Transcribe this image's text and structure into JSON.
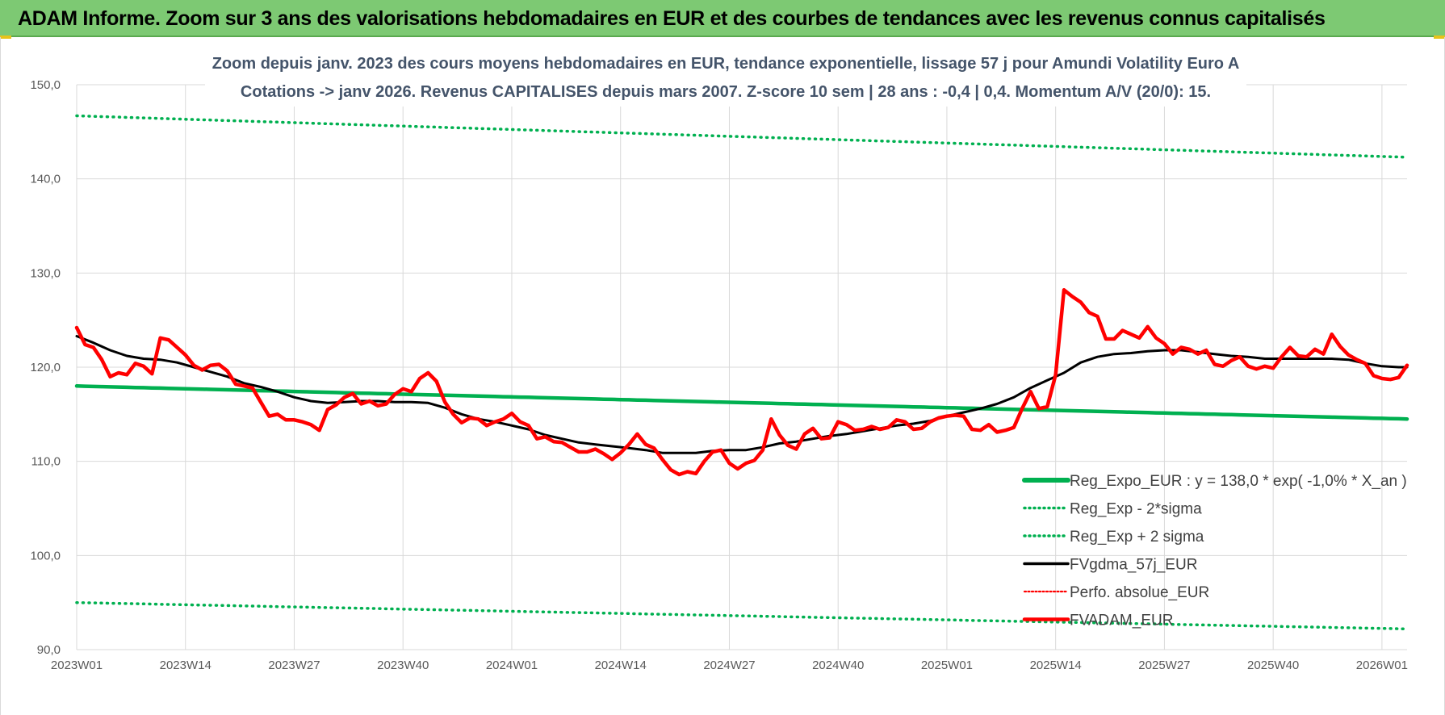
{
  "header": {
    "title": "ADAM Informe. Zoom sur 3 ans des valorisations hebdomadaires en EUR et des courbes de tendances avec les revenus connus capitalisés"
  },
  "colors": {
    "header_bg": "#7dc973",
    "trend": "#00b050",
    "black_line": "#000000",
    "red_line": "#ff0000",
    "grid": "#d9d9d9",
    "title_text": "#44546a"
  },
  "chart_data": {
    "type": "line",
    "title_lines": [
      "Zoom depuis janv. 2023 des cours moyens hebdomadaires en EUR, tendance exponentielle, lissage 57 j pour Amundi Volatility Euro A",
      "Cotations -> janv 2026. Revenus CAPITALISES  depuis mars 2007.  Z-score 10 sem | 28 ans : -0,4  | 0,4. Momentum A/V (20/0): 15."
    ],
    "ylim": [
      90,
      150
    ],
    "yticks": [
      90,
      100,
      110,
      120,
      130,
      140,
      150
    ],
    "ytick_labels": [
      "90,0",
      "100,0",
      "110,0",
      "120,0",
      "130,0",
      "140,0",
      "150,0"
    ],
    "x_count": 160,
    "xtick_index": [
      0,
      13,
      26,
      39,
      52,
      65,
      78,
      91,
      104,
      117,
      130,
      143,
      156
    ],
    "xtick_labels": [
      "2023W01",
      "2023W14",
      "2023W27",
      "2023W40",
      "2024W01",
      "2024W14",
      "2024W27",
      "2024W40",
      "2025W01",
      "2025W14",
      "2025W27",
      "2025W40",
      "2026W01"
    ],
    "legend": [
      "Reg_Expo_EUR : y = 138,0 * exp( -1,0% *  X_an )",
      "Reg_Exp - 2*sigma",
      "Reg_Exp + 2 sigma",
      "FVgdma_57j_EUR",
      "Perfo. absolue_EUR",
      "FVADAM_EUR"
    ],
    "series": [
      {
        "name": "Reg_Expo_EUR",
        "style": "solid-thick",
        "color": "#00b050",
        "points": [
          [
            0,
            118.0
          ],
          [
            159,
            114.5
          ]
        ]
      },
      {
        "name": "Reg_Exp + 2 sigma",
        "style": "dotted",
        "color": "#00b050",
        "points": [
          [
            0,
            146.7
          ],
          [
            159,
            142.3
          ]
        ]
      },
      {
        "name": "Reg_Exp - 2*sigma",
        "style": "dotted",
        "color": "#00b050",
        "points": [
          [
            0,
            95.0
          ],
          [
            159,
            92.2
          ]
        ]
      },
      {
        "name": "FVgdma_57j_EUR",
        "style": "solid",
        "color": "#000000",
        "points": [
          [
            0,
            123.3
          ],
          [
            2,
            122.6
          ],
          [
            4,
            121.8
          ],
          [
            6,
            121.2
          ],
          [
            8,
            120.9
          ],
          [
            10,
            120.8
          ],
          [
            12,
            120.5
          ],
          [
            14,
            120.0
          ],
          [
            16,
            119.5
          ],
          [
            18,
            119.0
          ],
          [
            20,
            118.3
          ],
          [
            22,
            117.9
          ],
          [
            24,
            117.4
          ],
          [
            26,
            116.8
          ],
          [
            28,
            116.4
          ],
          [
            30,
            116.2
          ],
          [
            32,
            116.3
          ],
          [
            34,
            116.4
          ],
          [
            36,
            116.4
          ],
          [
            38,
            116.3
          ],
          [
            40,
            116.3
          ],
          [
            42,
            116.2
          ],
          [
            44,
            115.7
          ],
          [
            46,
            115.0
          ],
          [
            48,
            114.5
          ],
          [
            50,
            114.2
          ],
          [
            52,
            113.8
          ],
          [
            54,
            113.4
          ],
          [
            56,
            112.8
          ],
          [
            58,
            112.4
          ],
          [
            60,
            112.0
          ],
          [
            62,
            111.8
          ],
          [
            64,
            111.6
          ],
          [
            66,
            111.4
          ],
          [
            68,
            111.2
          ],
          [
            70,
            110.9
          ],
          [
            72,
            110.9
          ],
          [
            74,
            110.9
          ],
          [
            76,
            111.1
          ],
          [
            78,
            111.2
          ],
          [
            80,
            111.2
          ],
          [
            82,
            111.5
          ],
          [
            84,
            111.9
          ],
          [
            86,
            112.1
          ],
          [
            88,
            112.4
          ],
          [
            90,
            112.7
          ],
          [
            92,
            112.9
          ],
          [
            94,
            113.2
          ],
          [
            96,
            113.5
          ],
          [
            98,
            113.8
          ],
          [
            100,
            114.0
          ],
          [
            102,
            114.3
          ],
          [
            104,
            114.8
          ],
          [
            106,
            115.2
          ],
          [
            108,
            115.6
          ],
          [
            110,
            116.1
          ],
          [
            112,
            116.8
          ],
          [
            114,
            117.8
          ],
          [
            116,
            118.6
          ],
          [
            118,
            119.4
          ],
          [
            120,
            120.5
          ],
          [
            122,
            121.1
          ],
          [
            124,
            121.4
          ],
          [
            126,
            121.5
          ],
          [
            128,
            121.7
          ],
          [
            130,
            121.8
          ],
          [
            132,
            121.8
          ],
          [
            134,
            121.6
          ],
          [
            136,
            121.4
          ],
          [
            138,
            121.2
          ],
          [
            140,
            121.1
          ],
          [
            142,
            120.9
          ],
          [
            144,
            120.9
          ],
          [
            146,
            120.9
          ],
          [
            148,
            120.9
          ],
          [
            150,
            120.9
          ],
          [
            152,
            120.8
          ],
          [
            154,
            120.4
          ],
          [
            156,
            120.1
          ],
          [
            158,
            120.0
          ],
          [
            159,
            120.0
          ]
        ]
      },
      {
        "name": "FVADAM_EUR",
        "style": "solid-thick",
        "color": "#ff0000",
        "points": [
          [
            0,
            124.2
          ],
          [
            1,
            122.4
          ],
          [
            2,
            122.1
          ],
          [
            3,
            120.8
          ],
          [
            4,
            119.0
          ],
          [
            5,
            119.4
          ],
          [
            6,
            119.2
          ],
          [
            7,
            120.4
          ],
          [
            8,
            120.1
          ],
          [
            9,
            119.3
          ],
          [
            10,
            123.1
          ],
          [
            11,
            122.9
          ],
          [
            12,
            122.1
          ],
          [
            13,
            121.3
          ],
          [
            14,
            120.2
          ],
          [
            15,
            119.7
          ],
          [
            16,
            120.2
          ],
          [
            17,
            120.3
          ],
          [
            18,
            119.6
          ],
          [
            19,
            118.2
          ],
          [
            20,
            118.0
          ],
          [
            21,
            117.8
          ],
          [
            22,
            116.3
          ],
          [
            23,
            114.8
          ],
          [
            24,
            115.0
          ],
          [
            25,
            114.4
          ],
          [
            26,
            114.4
          ],
          [
            27,
            114.2
          ],
          [
            28,
            113.9
          ],
          [
            29,
            113.3
          ],
          [
            30,
            115.5
          ],
          [
            31,
            116.0
          ],
          [
            32,
            116.8
          ],
          [
            33,
            117.2
          ],
          [
            34,
            116.1
          ],
          [
            35,
            116.4
          ],
          [
            36,
            115.9
          ],
          [
            37,
            116.1
          ],
          [
            38,
            117.1
          ],
          [
            39,
            117.7
          ],
          [
            40,
            117.4
          ],
          [
            41,
            118.8
          ],
          [
            42,
            119.4
          ],
          [
            43,
            118.5
          ],
          [
            44,
            116.3
          ],
          [
            45,
            115.0
          ],
          [
            46,
            114.1
          ],
          [
            47,
            114.6
          ],
          [
            48,
            114.5
          ],
          [
            49,
            113.8
          ],
          [
            50,
            114.2
          ],
          [
            51,
            114.5
          ],
          [
            52,
            115.1
          ],
          [
            53,
            114.2
          ],
          [
            54,
            113.8
          ],
          [
            55,
            112.4
          ],
          [
            56,
            112.6
          ],
          [
            57,
            112.1
          ],
          [
            58,
            112.0
          ],
          [
            59,
            111.5
          ],
          [
            60,
            111.0
          ],
          [
            61,
            111.0
          ],
          [
            62,
            111.3
          ],
          [
            63,
            110.8
          ],
          [
            64,
            110.2
          ],
          [
            65,
            110.9
          ],
          [
            66,
            111.8
          ],
          [
            67,
            112.9
          ],
          [
            68,
            111.8
          ],
          [
            69,
            111.4
          ],
          [
            70,
            110.2
          ],
          [
            71,
            109.1
          ],
          [
            72,
            108.6
          ],
          [
            73,
            108.9
          ],
          [
            74,
            108.7
          ],
          [
            75,
            110.0
          ],
          [
            76,
            111.0
          ],
          [
            77,
            111.2
          ],
          [
            78,
            109.8
          ],
          [
            79,
            109.2
          ],
          [
            80,
            109.8
          ],
          [
            81,
            110.1
          ],
          [
            82,
            111.2
          ],
          [
            83,
            114.5
          ],
          [
            84,
            112.8
          ],
          [
            85,
            111.7
          ],
          [
            86,
            111.3
          ],
          [
            87,
            112.9
          ],
          [
            88,
            113.5
          ],
          [
            89,
            112.4
          ],
          [
            90,
            112.5
          ],
          [
            91,
            114.2
          ],
          [
            92,
            113.9
          ],
          [
            93,
            113.3
          ],
          [
            94,
            113.4
          ],
          [
            95,
            113.7
          ],
          [
            96,
            113.4
          ],
          [
            97,
            113.6
          ],
          [
            98,
            114.4
          ],
          [
            99,
            114.2
          ],
          [
            100,
            113.4
          ],
          [
            101,
            113.5
          ],
          [
            102,
            114.2
          ],
          [
            103,
            114.6
          ],
          [
            104,
            114.8
          ],
          [
            105,
            114.9
          ],
          [
            106,
            114.8
          ],
          [
            107,
            113.4
          ],
          [
            108,
            113.3
          ],
          [
            109,
            113.9
          ],
          [
            110,
            113.1
          ],
          [
            111,
            113.3
          ],
          [
            112,
            113.6
          ],
          [
            113,
            115.6
          ],
          [
            114,
            117.4
          ],
          [
            115,
            115.6
          ],
          [
            116,
            115.8
          ],
          [
            117,
            119.2
          ],
          [
            118,
            128.2
          ],
          [
            119,
            127.5
          ],
          [
            120,
            126.9
          ],
          [
            121,
            125.8
          ],
          [
            122,
            125.4
          ],
          [
            123,
            123.0
          ],
          [
            124,
            123.0
          ],
          [
            125,
            123.9
          ],
          [
            126,
            123.5
          ],
          [
            127,
            123.1
          ],
          [
            128,
            124.3
          ],
          [
            129,
            123.1
          ],
          [
            130,
            122.5
          ],
          [
            131,
            121.4
          ],
          [
            132,
            122.1
          ],
          [
            133,
            121.9
          ],
          [
            134,
            121.4
          ],
          [
            135,
            121.8
          ],
          [
            136,
            120.3
          ],
          [
            137,
            120.1
          ],
          [
            138,
            120.7
          ],
          [
            139,
            121.1
          ],
          [
            140,
            120.1
          ],
          [
            141,
            119.8
          ],
          [
            142,
            120.1
          ],
          [
            143,
            119.9
          ],
          [
            144,
            121.1
          ],
          [
            145,
            122.1
          ],
          [
            146,
            121.2
          ],
          [
            147,
            121.1
          ],
          [
            148,
            121.9
          ],
          [
            149,
            121.4
          ],
          [
            150,
            123.5
          ],
          [
            151,
            122.2
          ],
          [
            152,
            121.3
          ],
          [
            153,
            120.8
          ],
          [
            154,
            120.4
          ],
          [
            155,
            119.1
          ],
          [
            156,
            118.8
          ],
          [
            157,
            118.7
          ],
          [
            158,
            118.9
          ],
          [
            159,
            120.2
          ]
        ]
      }
    ]
  }
}
